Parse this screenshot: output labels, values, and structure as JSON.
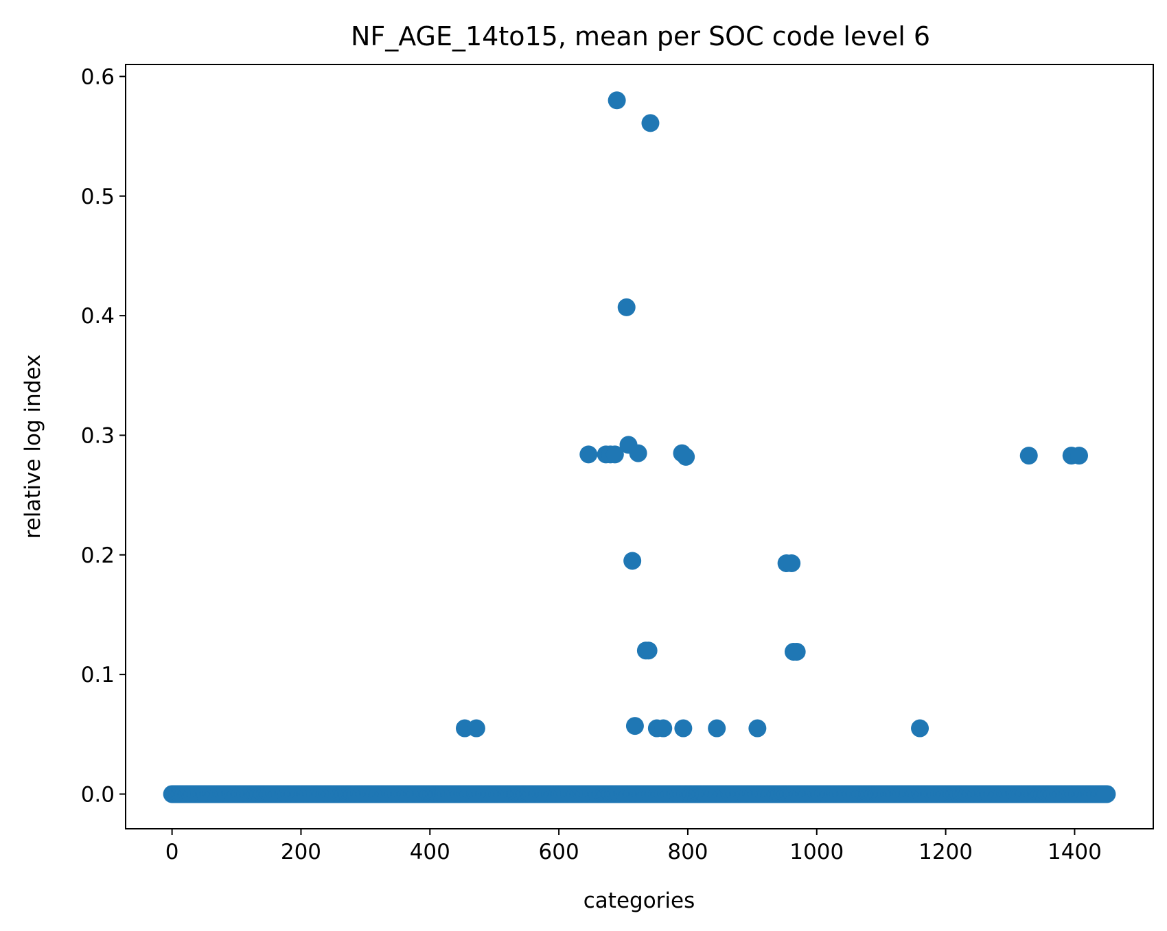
{
  "chart_data": {
    "type": "scatter",
    "title": "NF_AGE_14to15, mean per SOC code level 6",
    "xlabel": "categories",
    "ylabel": "relative log index",
    "xlim": [
      -72,
      1522
    ],
    "ylim": [
      -0.029,
      0.61
    ],
    "xticks": [
      0,
      200,
      400,
      600,
      800,
      1000,
      1200,
      1400
    ],
    "xtick_labels": [
      "0",
      "200",
      "400",
      "600",
      "800",
      "1000",
      "1200",
      "1400"
    ],
    "yticks": [
      0.0,
      0.1,
      0.2,
      0.3,
      0.4,
      0.5,
      0.6
    ],
    "ytick_labels": [
      "0.0",
      "0.1",
      "0.2",
      "0.3",
      "0.4",
      "0.5",
      "0.6"
    ],
    "grid": false,
    "marker_color": "#1f77b4",
    "baseline": {
      "x_start": 0,
      "x_end": 1450,
      "step": 2,
      "y": 0.0
    },
    "points": [
      {
        "x": 690,
        "y": 0.58
      },
      {
        "x": 742,
        "y": 0.561
      },
      {
        "x": 705,
        "y": 0.407
      },
      {
        "x": 646,
        "y": 0.284
      },
      {
        "x": 673,
        "y": 0.284
      },
      {
        "x": 680,
        "y": 0.284
      },
      {
        "x": 687,
        "y": 0.284
      },
      {
        "x": 708,
        "y": 0.292
      },
      {
        "x": 723,
        "y": 0.285
      },
      {
        "x": 791,
        "y": 0.285
      },
      {
        "x": 797,
        "y": 0.282
      },
      {
        "x": 1329,
        "y": 0.283
      },
      {
        "x": 1395,
        "y": 0.283
      },
      {
        "x": 1407,
        "y": 0.283
      },
      {
        "x": 714,
        "y": 0.195
      },
      {
        "x": 953,
        "y": 0.193
      },
      {
        "x": 961,
        "y": 0.193
      },
      {
        "x": 735,
        "y": 0.12
      },
      {
        "x": 739,
        "y": 0.12
      },
      {
        "x": 964,
        "y": 0.119
      },
      {
        "x": 969,
        "y": 0.119
      },
      {
        "x": 454,
        "y": 0.055
      },
      {
        "x": 472,
        "y": 0.055
      },
      {
        "x": 718,
        "y": 0.057
      },
      {
        "x": 752,
        "y": 0.055
      },
      {
        "x": 762,
        "y": 0.055
      },
      {
        "x": 793,
        "y": 0.055
      },
      {
        "x": 845,
        "y": 0.055
      },
      {
        "x": 908,
        "y": 0.055
      },
      {
        "x": 1160,
        "y": 0.055
      }
    ]
  }
}
